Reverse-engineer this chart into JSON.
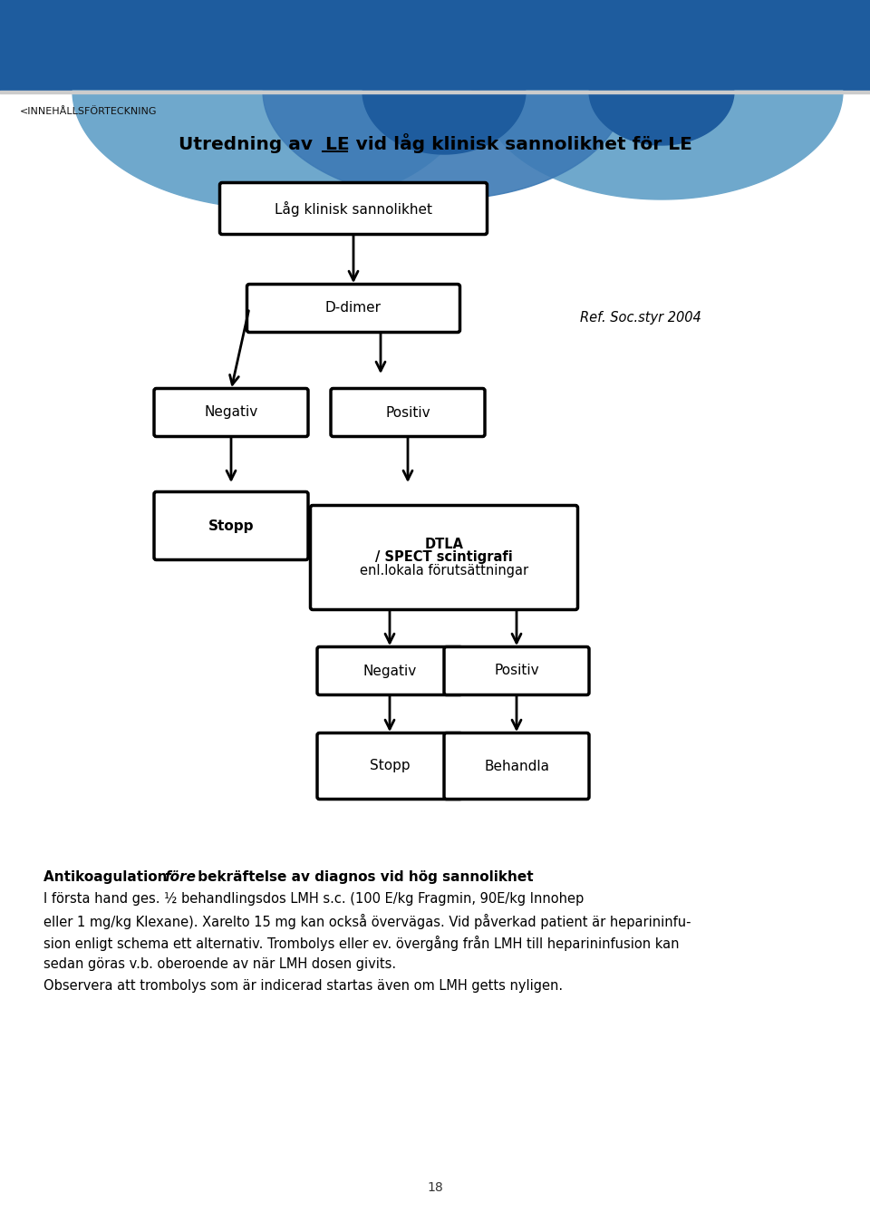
{
  "title": "Utredning av  LE vid låg klinisk sannolikhet för LE",
  "header_text": "<INNEHÅLLSFÖRTECKNING",
  "ref_text": "Ref. Soc.styr 2004",
  "page_number": "18",
  "header_bg_color": "#1e5c9e",
  "light_blue": "#6fa8cc",
  "mid_blue": "#3d7ab5",
  "body_bg_color": "#ffffff",
  "bottom_heading_parts": [
    "Antikoagulation ",
    "före",
    " bekräftelse av diagnos vid hög sannolikhet"
  ],
  "bottom_lines": [
    "I första hand ges. ½ behandlingsdos LMH s.c. (100 E/kg Fragmin, 90E/kg Innohep",
    "eller 1 mg/kg Klexane). Xarelto 15 mg kan också övervägas. Vid påverkad patient är heparininfu-",
    "sion enligt schema ett alternativ. Trombolys eller ev. övergång från LMH till heparininfusion kan",
    "sedan göras v.b. oberoende av när LMH dosen givits.",
    "Observera att trombolys som är indicerad startas även om LMH getts nyligen."
  ]
}
